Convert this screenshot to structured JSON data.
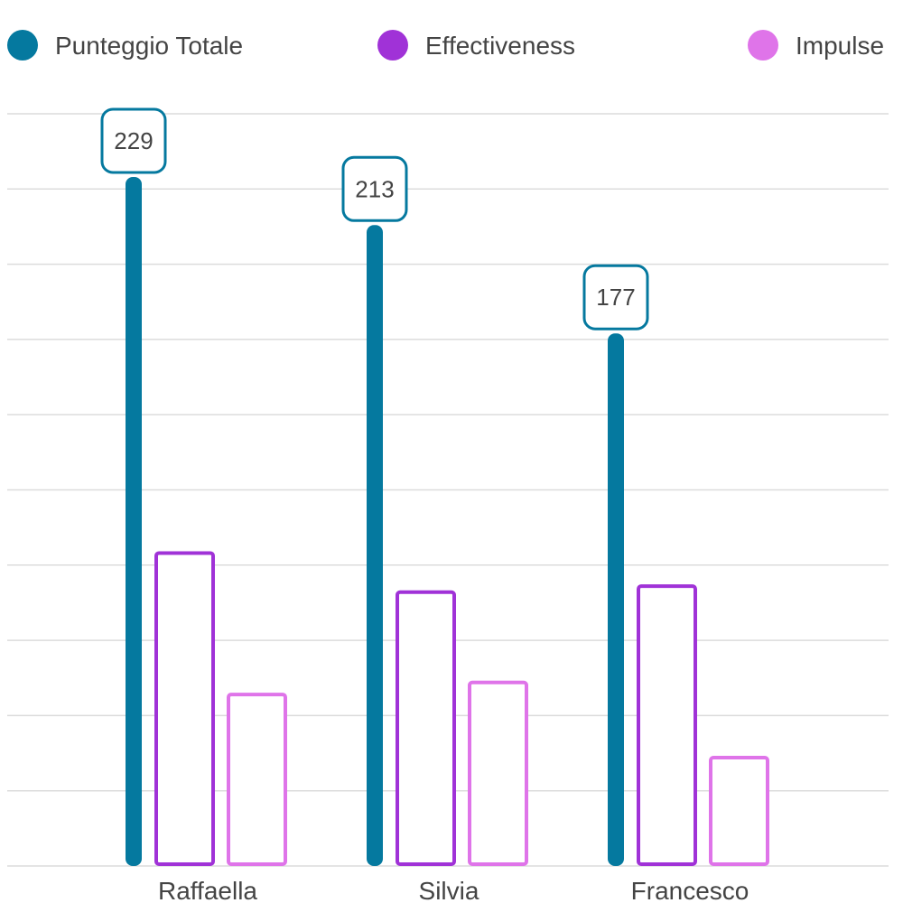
{
  "chart_data": {
    "type": "bar",
    "categories": [
      "Raffaella",
      "Silvia",
      "Francesco"
    ],
    "series": [
      {
        "name": "Punteggio Totale",
        "values": [
          229,
          213,
          177
        ],
        "color": "#05799F",
        "style": "thin-filled",
        "value_labels": [
          "229",
          "213",
          "177"
        ]
      },
      {
        "name": "Effectiveness",
        "values": [
          104,
          91,
          93
        ],
        "color": "#A032D7",
        "style": "outlined"
      },
      {
        "name": "Impulse",
        "values": [
          57,
          61,
          36
        ],
        "color": "#DF74E9",
        "style": "outlined"
      }
    ],
    "ylim": [
      0,
      250
    ],
    "gridlines": [
      0,
      25,
      50,
      75,
      100,
      125,
      150,
      175,
      200,
      225,
      250
    ],
    "grid": true,
    "legend_position": "top",
    "xlabel": "",
    "ylabel": ""
  }
}
